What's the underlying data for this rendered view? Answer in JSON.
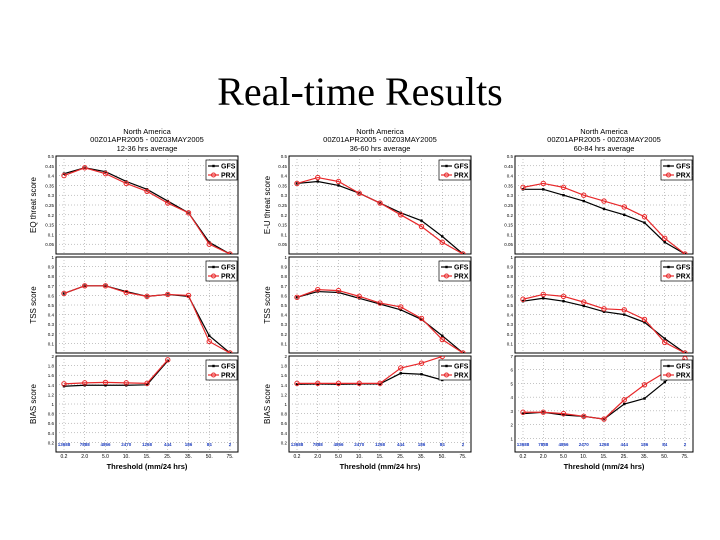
{
  "slide": {
    "title": "Real-time Results"
  },
  "legend_labels": [
    "GFS",
    "PRX"
  ],
  "colors": {
    "gfs": "#000000",
    "prx": "#e8282a",
    "counts": "#1f3fbf",
    "grid": "#8a8a8a"
  },
  "chart_data": [
    {
      "type": "line",
      "header": [
        "North America",
        "00Z01APR2005 - 00Z03MAY2005",
        "12-36 hrs average"
      ],
      "xlabel": "Threshold (mm/24 hrs)",
      "categories": [
        "0.2",
        "2.0",
        "5.0",
        "10.",
        "15.",
        "25.",
        "35.",
        "50.",
        "75."
      ],
      "counts": [
        "13688",
        "7888",
        "4866",
        "2470",
        "1268",
        "444",
        "186",
        "84",
        "2"
      ],
      "panels": [
        {
          "ylabel": "EQ threat score",
          "ylim": [
            0,
            0.5
          ],
          "yticks": [
            "0.05",
            "0.1",
            "0.15",
            "0.2",
            "0.25",
            "0.3",
            "0.35",
            "0.4",
            "0.45",
            "0.5"
          ],
          "series": [
            {
              "name": "GFS",
              "values": [
                0.41,
                0.44,
                0.42,
                0.37,
                0.33,
                0.27,
                0.21,
                0.06,
                0.0
              ]
            },
            {
              "name": "PRX",
              "values": [
                0.4,
                0.44,
                0.41,
                0.36,
                0.32,
                0.26,
                0.21,
                0.05,
                0.0
              ]
            }
          ]
        },
        {
          "ylabel": "TSS score",
          "ylim": [
            0,
            1
          ],
          "yticks": [
            "0.1",
            "0.2",
            "0.3",
            "0.4",
            "0.5",
            "0.6",
            "0.7",
            "0.8",
            "0.9",
            "1"
          ],
          "series": [
            {
              "name": "GFS",
              "values": [
                0.62,
                0.7,
                0.7,
                0.64,
                0.59,
                0.61,
                0.59,
                0.18,
                0.0
              ]
            },
            {
              "name": "PRX",
              "values": [
                0.62,
                0.7,
                0.7,
                0.63,
                0.59,
                0.61,
                0.6,
                0.12,
                0.0
              ]
            }
          ]
        },
        {
          "ylabel": "BIAS score",
          "ylim": [
            0,
            2
          ],
          "yticks": [
            "0.2",
            "0.4",
            "0.6",
            "0.8",
            "1",
            "1.2",
            "1.4",
            "1.6",
            "1.8",
            "2"
          ],
          "series": [
            {
              "name": "GFS",
              "values": [
                1.37,
                1.39,
                1.39,
                1.39,
                1.4,
                1.9,
                null,
                null,
                null
              ]
            },
            {
              "name": "PRX",
              "values": [
                1.42,
                1.44,
                1.45,
                1.44,
                1.43,
                1.92,
                null,
                null,
                null
              ]
            }
          ]
        }
      ]
    },
    {
      "type": "line",
      "header": [
        "North America",
        "00Z01APR2005 - 00Z03MAY2005",
        "36-60 hrs average"
      ],
      "xlabel": "Threshold (mm/24 hrs)",
      "categories": [
        "0.2",
        "2.0",
        "5.0",
        "10.",
        "15.",
        "25.",
        "35.",
        "50.",
        "75."
      ],
      "counts": [
        "13688",
        "7888",
        "4866",
        "2470",
        "1268",
        "444",
        "186",
        "84",
        "2"
      ],
      "panels": [
        {
          "ylabel": "E-U threat score",
          "ylim": [
            0,
            0.5
          ],
          "yticks": [
            "0.05",
            "0.1",
            "0.15",
            "0.2",
            "0.25",
            "0.3",
            "0.35",
            "0.4",
            "0.45",
            "0.5"
          ],
          "series": [
            {
              "name": "GFS",
              "values": [
                0.36,
                0.37,
                0.35,
                0.31,
                0.26,
                0.21,
                0.17,
                0.09,
                0.0
              ]
            },
            {
              "name": "PRX",
              "values": [
                0.36,
                0.39,
                0.37,
                0.31,
                0.26,
                0.2,
                0.14,
                0.06,
                0.0
              ]
            }
          ]
        },
        {
          "ylabel": "TSS score",
          "ylim": [
            0,
            1
          ],
          "yticks": [
            "0.1",
            "0.2",
            "0.3",
            "0.4",
            "0.5",
            "0.6",
            "0.7",
            "0.8",
            "0.9",
            "1"
          ],
          "series": [
            {
              "name": "GFS",
              "values": [
                0.58,
                0.64,
                0.63,
                0.57,
                0.51,
                0.45,
                0.35,
                0.18,
                0.0
              ]
            },
            {
              "name": "PRX",
              "values": [
                0.58,
                0.66,
                0.65,
                0.59,
                0.52,
                0.48,
                0.36,
                0.14,
                0.0
              ]
            }
          ]
        },
        {
          "ylabel": "BIAS score",
          "ylim": [
            0,
            2
          ],
          "yticks": [
            "0.2",
            "0.4",
            "0.6",
            "0.8",
            "1",
            "1.2",
            "1.4",
            "1.6",
            "1.8",
            "2"
          ],
          "series": [
            {
              "name": "GFS",
              "values": [
                1.41,
                1.42,
                1.41,
                1.42,
                1.42,
                1.64,
                1.62,
                1.5,
                null
              ]
            },
            {
              "name": "PRX",
              "values": [
                1.43,
                1.43,
                1.43,
                1.43,
                1.43,
                1.75,
                1.85,
                1.99,
                null
              ]
            }
          ]
        }
      ]
    },
    {
      "type": "line",
      "header": [
        "North America",
        "00Z01APR2005 - 00Z03MAY2005",
        "60-84 hrs average"
      ],
      "xlabel": "Threshold (mm/24 hrs)",
      "categories": [
        "0.2",
        "2.0",
        "5.0",
        "10.",
        "15.",
        "25.",
        "35.",
        "50.",
        "75."
      ],
      "counts": [
        "13688",
        "7888",
        "4866",
        "2470",
        "1268",
        "444",
        "186",
        "84",
        "2"
      ],
      "panels": [
        {
          "ylabel": "",
          "ylim": [
            0,
            0.5
          ],
          "yticks": [
            "0.05",
            "0.1",
            "0.15",
            "0.2",
            "0.25",
            "0.3",
            "0.35",
            "0.4",
            "0.45",
            "0.5"
          ],
          "series": [
            {
              "name": "GFS",
              "values": [
                0.33,
                0.33,
                0.3,
                0.27,
                0.23,
                0.2,
                0.16,
                0.06,
                0.0
              ]
            },
            {
              "name": "PRX",
              "values": [
                0.34,
                0.36,
                0.34,
                0.3,
                0.27,
                0.24,
                0.19,
                0.08,
                0.0
              ]
            }
          ]
        },
        {
          "ylabel": "",
          "ylim": [
            0,
            1
          ],
          "yticks": [
            "0.1",
            "0.2",
            "0.3",
            "0.4",
            "0.5",
            "0.6",
            "0.7",
            "0.8",
            "0.9",
            "1"
          ],
          "series": [
            {
              "name": "GFS",
              "values": [
                0.54,
                0.57,
                0.54,
                0.49,
                0.43,
                0.4,
                0.32,
                0.15,
                0.0
              ]
            },
            {
              "name": "PRX",
              "values": [
                0.56,
                0.61,
                0.59,
                0.53,
                0.46,
                0.45,
                0.35,
                0.11,
                0.0
              ]
            }
          ]
        },
        {
          "ylabel": "",
          "ylim": [
            0,
            7
          ],
          "yticks": [
            "1",
            "2",
            "3",
            "4",
            "5",
            "6",
            "7"
          ],
          "series": [
            {
              "name": "GFS",
              "values": [
                2.8,
                2.9,
                2.7,
                2.6,
                2.4,
                3.5,
                3.9,
                5.1,
                6.4
              ]
            },
            {
              "name": "PRX",
              "values": [
                2.9,
                2.9,
                2.8,
                2.6,
                2.4,
                3.8,
                4.9,
                5.8,
                6.8
              ]
            }
          ]
        }
      ]
    }
  ]
}
